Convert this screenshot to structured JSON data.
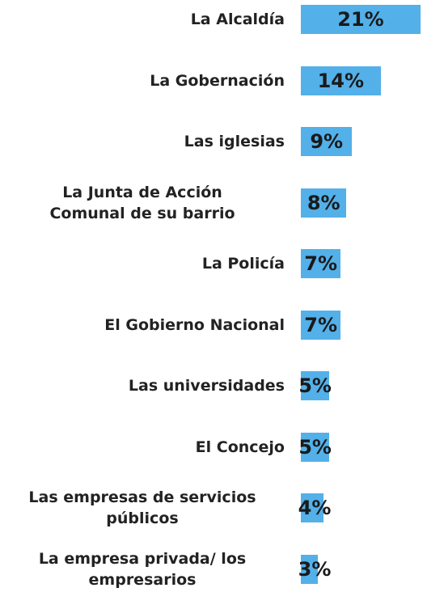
{
  "chart_data": {
    "type": "bar",
    "orientation": "horizontal",
    "color": "#53b0e9",
    "categories": [
      "La Alcaldía",
      "La Gobernación",
      "Las iglesias",
      "La Junta de Acción\nComunal de su barrio",
      "La Policía",
      "El Gobierno Nacional",
      "Las universidades",
      "El Concejo",
      "Las empresas de servicios\npúblicos",
      "La empresa privada/ los\nempresarios"
    ],
    "values": [
      21,
      14,
      9,
      8,
      7,
      7,
      5,
      5,
      4,
      3
    ],
    "value_labels": [
      "21%",
      "14%",
      "9%",
      "8%",
      "7%",
      "7%",
      "5%",
      "5%",
      "4%",
      "3%"
    ]
  }
}
